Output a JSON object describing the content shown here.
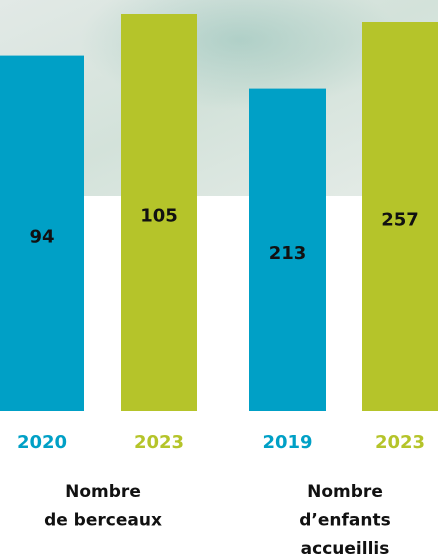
{
  "chart_data": [
    {
      "type": "bar",
      "title_lines": [
        "Nombre",
        "de berceaux"
      ],
      "categories": [
        "2020",
        "2023"
      ],
      "values": [
        94,
        105
      ],
      "colors": [
        "#00a0c6",
        "#b5c42a"
      ]
    },
    {
      "type": "bar",
      "title_lines": [
        "Nombre",
        "d’enfants",
        "accueillis"
      ],
      "categories": [
        "2019",
        "2023"
      ],
      "values": [
        213,
        257
      ],
      "colors": [
        "#00a0c6",
        "#b5c42a"
      ]
    }
  ]
}
